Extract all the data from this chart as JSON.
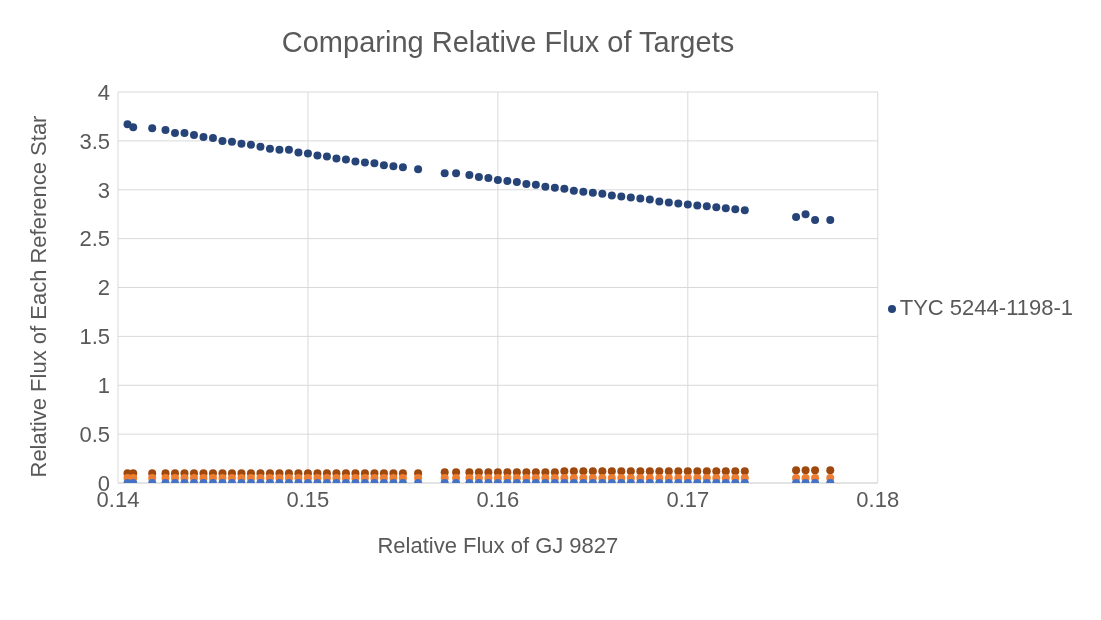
{
  "chart_data": {
    "type": "scatter",
    "title": "Comparing Relative Flux of Targets",
    "xlabel": "Relative Flux of GJ 9827",
    "ylabel": "Relative Flux of Each Reference Star",
    "x": [
      0.1405,
      0.1408,
      0.1418,
      0.1425,
      0.143,
      0.1435,
      0.144,
      0.1445,
      0.145,
      0.1455,
      0.146,
      0.1465,
      0.147,
      0.1475,
      0.148,
      0.1485,
      0.149,
      0.1495,
      0.15,
      0.1505,
      0.151,
      0.1515,
      0.152,
      0.1525,
      0.153,
      0.1535,
      0.154,
      0.1545,
      0.155,
      0.1558,
      0.1572,
      0.1578,
      0.1585,
      0.159,
      0.1595,
      0.16,
      0.1605,
      0.161,
      0.1615,
      0.162,
      0.1625,
      0.163,
      0.1635,
      0.164,
      0.1645,
      0.165,
      0.1655,
      0.166,
      0.1665,
      0.167,
      0.1675,
      0.168,
      0.1685,
      0.169,
      0.1695,
      0.17,
      0.1705,
      0.171,
      0.1715,
      0.172,
      0.1725,
      0.173,
      0.1757,
      0.1762,
      0.1767,
      0.1775
    ],
    "series": [
      {
        "name": "TYC 5244-1198-1",
        "color": "#264478",
        "values": [
          3.67,
          3.64,
          3.63,
          3.61,
          3.58,
          3.58,
          3.56,
          3.54,
          3.53,
          3.5,
          3.49,
          3.47,
          3.46,
          3.44,
          3.42,
          3.41,
          3.41,
          3.38,
          3.37,
          3.35,
          3.34,
          3.32,
          3.31,
          3.29,
          3.28,
          3.27,
          3.25,
          3.24,
          3.23,
          3.21,
          3.17,
          3.17,
          3.15,
          3.13,
          3.12,
          3.1,
          3.09,
          3.08,
          3.06,
          3.05,
          3.03,
          3.02,
          3.01,
          2.99,
          2.98,
          2.97,
          2.96,
          2.94,
          2.93,
          2.92,
          2.91,
          2.9,
          2.88,
          2.87,
          2.86,
          2.85,
          2.84,
          2.83,
          2.82,
          2.81,
          2.8,
          2.79,
          2.72,
          2.75,
          2.69,
          2.69
        ]
      },
      {
        "color": "#9e480e",
        "values": [
          0.1,
          0.1,
          0.1,
          0.1,
          0.1,
          0.1,
          0.1,
          0.1,
          0.1,
          0.1,
          0.1,
          0.1,
          0.1,
          0.1,
          0.1,
          0.1,
          0.1,
          0.1,
          0.1,
          0.1,
          0.1,
          0.1,
          0.1,
          0.1,
          0.1,
          0.1,
          0.1,
          0.1,
          0.1,
          0.1,
          0.11,
          0.11,
          0.11,
          0.11,
          0.11,
          0.11,
          0.11,
          0.11,
          0.11,
          0.11,
          0.11,
          0.11,
          0.12,
          0.12,
          0.12,
          0.12,
          0.12,
          0.12,
          0.12,
          0.12,
          0.12,
          0.12,
          0.12,
          0.12,
          0.12,
          0.12,
          0.12,
          0.12,
          0.12,
          0.12,
          0.12,
          0.12,
          0.13,
          0.13,
          0.13,
          0.13
        ]
      },
      {
        "color": "#ed7d31",
        "values": [
          0.05,
          0.05,
          0.05,
          0.05,
          0.05,
          0.05,
          0.05,
          0.05,
          0.05,
          0.05,
          0.05,
          0.05,
          0.05,
          0.05,
          0.05,
          0.05,
          0.05,
          0.05,
          0.05,
          0.05,
          0.05,
          0.05,
          0.05,
          0.05,
          0.05,
          0.05,
          0.05,
          0.05,
          0.05,
          0.05,
          0.05,
          0.05,
          0.05,
          0.05,
          0.05,
          0.05,
          0.05,
          0.05,
          0.05,
          0.05,
          0.05,
          0.05,
          0.05,
          0.05,
          0.05,
          0.05,
          0.05,
          0.05,
          0.05,
          0.05,
          0.05,
          0.05,
          0.05,
          0.05,
          0.05,
          0.05,
          0.05,
          0.05,
          0.05,
          0.05,
          0.05,
          0.05,
          0.05,
          0.05,
          0.05,
          0.05
        ]
      },
      {
        "color": "#4472c4",
        "values": [
          0,
          0,
          0,
          0,
          0,
          0,
          0,
          0,
          0,
          0,
          0,
          0,
          0,
          0,
          0,
          0,
          0,
          0,
          0,
          0,
          0,
          0,
          0,
          0,
          0,
          0,
          0,
          0,
          0,
          0,
          0,
          0,
          0,
          0,
          0,
          0,
          0,
          0,
          0,
          0,
          0,
          0,
          0,
          0,
          0,
          0,
          0,
          0,
          0,
          0,
          0,
          0,
          0,
          0,
          0,
          0,
          0,
          0,
          0,
          0,
          0,
          0,
          0,
          0,
          0,
          0
        ]
      }
    ],
    "xlim": [
      0.14,
      0.18
    ],
    "xticks": [
      0.14,
      0.15,
      0.16,
      0.17,
      0.18
    ],
    "ylim": [
      0,
      4
    ],
    "yticks": [
      0,
      0.5,
      1,
      1.5,
      2,
      2.5,
      3,
      3.5,
      4
    ],
    "grid": true,
    "legend": "right",
    "marker": "circle"
  }
}
